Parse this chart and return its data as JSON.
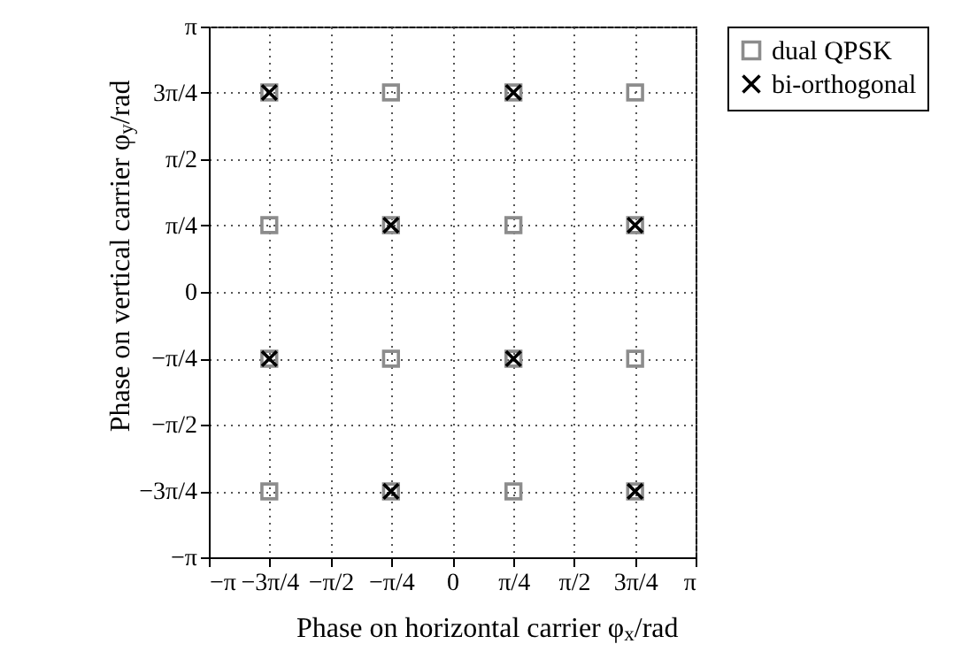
{
  "chart_data": {
    "type": "scatter",
    "xlabel": "Phase on horizontal carrier φ$_{x}$/rad",
    "ylabel": "Phase on vertical carrier φ$_{y}$/rad",
    "xlim": [
      -3.14,
      3.14
    ],
    "ylim": [
      -3.14,
      3.14
    ],
    "xticks": [
      {
        "value": -3.14,
        "label": "−π"
      },
      {
        "value": -2.36,
        "label": "−3π/4"
      },
      {
        "value": -1.57,
        "label": "−π/2"
      },
      {
        "value": -0.79,
        "label": "−π/4"
      },
      0,
      {
        "value": 0.79,
        "label": "π/4"
      },
      {
        "value": 1.57,
        "label": "π/2"
      },
      {
        "value": 2.36,
        "label": "3π/4"
      },
      {
        "value": 3.14,
        "label": "π"
      }
    ],
    "yticks": [
      {
        "value": -3.14,
        "label": "−π"
      },
      {
        "value": -2.36,
        "label": "−3π/4"
      },
      {
        "value": -1.57,
        "label": "−π/2"
      },
      {
        "value": -0.79,
        "label": "−π/4"
      },
      0,
      {
        "value": 0.79,
        "label": "π/4"
      },
      {
        "value": 1.57,
        "label": "π/2"
      },
      {
        "value": 2.36,
        "label": "3π/4"
      },
      {
        "value": 3.14,
        "label": "π"
      }
    ],
    "grid": true,
    "legend": "top right",
    "series": [
      {
        "name": "dual QPSK",
        "color": "#8c8c8c",
        "marker": "square",
        "x": [
          -2.36,
          -0.79,
          0.79,
          2.36,
          -2.36,
          -0.79,
          0.79,
          2.36,
          -2.36,
          -0.79,
          0.79,
          2.36,
          -2.36,
          -0.79,
          0.79,
          2.36
        ],
        "values": [
          2.36,
          2.36,
          2.36,
          2.36,
          0.79,
          0.79,
          0.79,
          0.79,
          -0.79,
          -0.79,
          -0.79,
          -0.79,
          -2.36,
          -2.36,
          -2.36,
          -2.36
        ]
      },
      {
        "name": "bi-orthogonal",
        "color": "#000000",
        "marker": "cross",
        "x": [
          -2.36,
          0.79,
          -0.79,
          2.36,
          -2.36,
          0.79,
          -0.79,
          2.36
        ],
        "values": [
          2.36,
          2.36,
          0.79,
          0.79,
          -0.79,
          -0.79,
          -2.36,
          -2.36
        ]
      }
    ]
  }
}
